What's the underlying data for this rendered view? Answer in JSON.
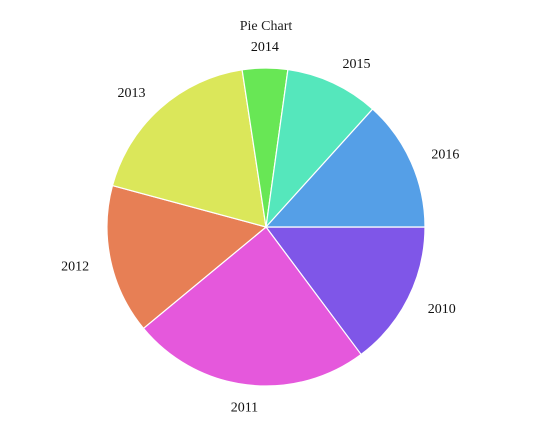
{
  "chart_data": {
    "type": "pie",
    "title": "Pie Chart",
    "start_angle_deg": 0,
    "direction": "clockwise",
    "categories": [
      "2010",
      "2011",
      "2012",
      "2013",
      "2014",
      "2015",
      "2016"
    ],
    "values": [
      14.8,
      24.2,
      15.2,
      18.4,
      4.6,
      9.5,
      13.3
    ],
    "colors": [
      "#7f56e8",
      "#e558dc",
      "#e77f55",
      "#dbe75a",
      "#68e755",
      "#55e7bc",
      "#559fe7"
    ],
    "legend": "none",
    "labels_outside": true
  }
}
